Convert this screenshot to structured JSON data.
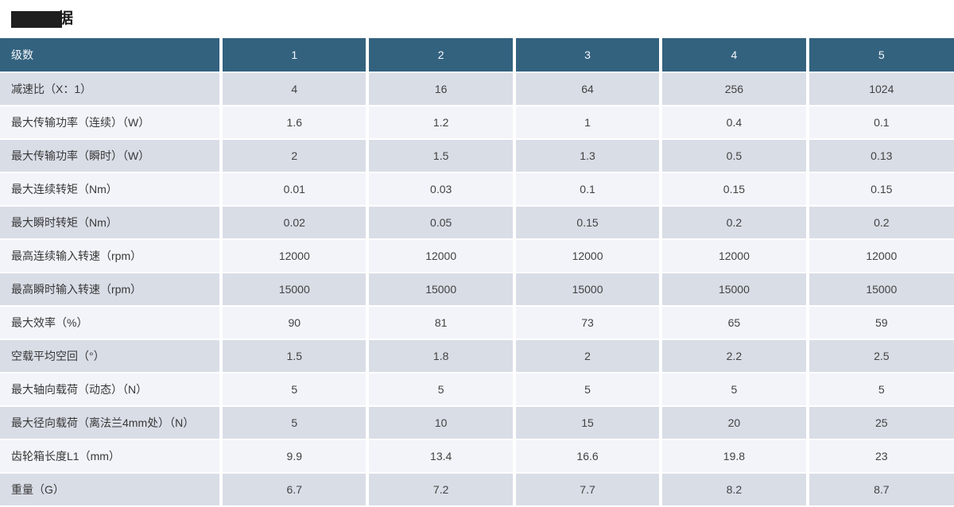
{
  "title": {
    "redacted": true,
    "visible_char": "据"
  },
  "colors": {
    "header_bg": "#33627F",
    "header_text": "#F4F7F9",
    "row_gray": "#D9DDE6",
    "row_light": "#F2F4F9",
    "separator": "#FFFFFF",
    "body_text": "#3B3B3B"
  },
  "table": {
    "header": {
      "label": "级数",
      "columns": [
        "1",
        "2",
        "3",
        "4",
        "5"
      ]
    },
    "rows": [
      {
        "label": "减速比（X：1）",
        "values": [
          "4",
          "16",
          "64",
          "256",
          "1024"
        ]
      },
      {
        "label": "最大传输功率（连续）（W）",
        "values": [
          "1.6",
          "1.2",
          "1",
          "0.4",
          "0.1"
        ]
      },
      {
        "label": "最大传输功率（瞬时）（W）",
        "values": [
          "2",
          "1.5",
          "1.3",
          "0.5",
          "0.13"
        ]
      },
      {
        "label": "最大连续转矩（Nm）",
        "values": [
          "0.01",
          "0.03",
          "0.1",
          "0.15",
          "0.15"
        ]
      },
      {
        "label": "最大瞬时转矩（Nm）",
        "values": [
          "0.02",
          "0.05",
          "0.15",
          "0.2",
          "0.2"
        ]
      },
      {
        "label": "最高连续输入转速（rpm）",
        "values": [
          "12000",
          "12000",
          "12000",
          "12000",
          "12000"
        ]
      },
      {
        "label": "最高瞬时输入转速（rpm）",
        "values": [
          "15000",
          "15000",
          "15000",
          "15000",
          "15000"
        ]
      },
      {
        "label": "最大效率（%）",
        "values": [
          "90",
          "81",
          "73",
          "65",
          "59"
        ]
      },
      {
        "label": "空载平均空回（°）",
        "values": [
          "1.5",
          "1.8",
          "2",
          "2.2",
          "2.5"
        ]
      },
      {
        "label": "最大轴向载荷（动态）（N）",
        "values": [
          "5",
          "5",
          "5",
          "5",
          "5"
        ]
      },
      {
        "label": "最大径向载荷（离法兰4mm处）（N）",
        "values": [
          "5",
          "10",
          "15",
          "20",
          "25"
        ]
      },
      {
        "label": "齿轮箱长度L1（mm）",
        "values": [
          "9.9",
          "13.4",
          "16.6",
          "19.8",
          "23"
        ]
      },
      {
        "label": "重量（G）",
        "values": [
          "6.7",
          "7.2",
          "7.7",
          "8.2",
          "8.7"
        ]
      }
    ]
  }
}
